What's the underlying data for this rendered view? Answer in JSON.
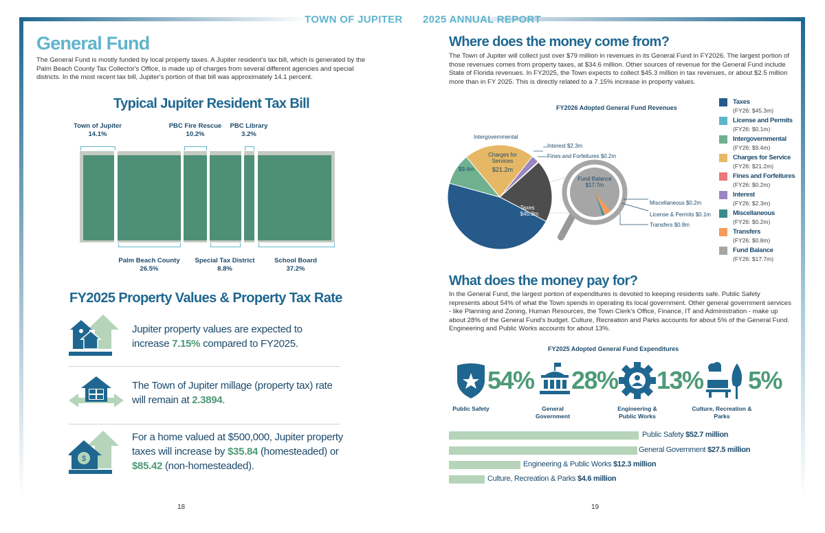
{
  "header": {
    "left": "TOWN OF JUPITER",
    "right": "2025 ANNUAL REPORT"
  },
  "left_page": {
    "title": "General Fund",
    "intro": "The General Fund is mostly funded by local property taxes. A Jupiter resident’s tax bill, which is generated by the Palm Beach County Tax Collector's Office, is made up of charges from several different agencies and special districts. In the most recent tax bill, Jupiter's portion of that bill was approximately 14.1 percent.",
    "tax_bill": {
      "title": "Typical Jupiter Resident Tax Bill",
      "segments": [
        {
          "name": "Town of Jupiter",
          "pct": "14.1%"
        },
        {
          "name": "Palm Beach County",
          "pct": "26.5%"
        },
        {
          "name": "PBC Fire Rescue",
          "pct": "10.2%"
        },
        {
          "name": "Special Tax District",
          "pct": "8.8%"
        },
        {
          "name": "PBC Library",
          "pct": "3.2%"
        },
        {
          "name": "School Board",
          "pct": "37.2%"
        }
      ],
      "colors": {
        "segment": "#4e8f78",
        "frame": "#c5cbc2",
        "bracket": "#5fb4cc"
      }
    },
    "property": {
      "title": "FY2025 Property Values & Property Tax Rate",
      "items": [
        {
          "icon": "houses-up-arrow-icon",
          "pre": "Jupiter property values are expected to increase ",
          "hl1": "7.15%",
          "mid": " compared to FY2025.",
          "hl2": "",
          "post": ""
        },
        {
          "icon": "calculator-house-icon",
          "pre": "The Town of Jupiter millage (property tax) rate will remain at ",
          "hl1": "2.3894",
          "mid": ".",
          "hl2": "",
          "post": ""
        },
        {
          "icon": "dollar-house-up-arrow-icon",
          "pre": "For a home valued at $500,000, Jupiter property taxes will increase by ",
          "hl1": "$35.84",
          "mid": " (homesteaded) or ",
          "hl2": "$85.42",
          "post": " (non-homesteaded)."
        }
      ]
    },
    "page_number": "18"
  },
  "right_page": {
    "revenue": {
      "title": "Where does the money come from?",
      "text": "The Town of Jupiter will collect just over $79 million in revenues in its General Fund in FY2026. The largest portion of those revenues comes from property taxes, at $34.6 million. Other sources of revenue for the General Fund include State of Florida revenues. In FY2025, the Town expects to collect $45.3 million in tax revenues, or about $2.5 million more than in FY 2025. This is directly related to a 7.15% increase in property values."
    },
    "chart_data": {
      "type": "pie",
      "title": "FY2026 Adopted General Fund Revenues",
      "legend_position": "right",
      "slices": [
        {
          "name": "Taxes",
          "value": 45.3,
          "legend_value": "(FY26: $45.3m)",
          "color": "#255a8a"
        },
        {
          "name": "License and Permits",
          "value": 0.1,
          "legend_value": "(FY26: $0.1m)",
          "color": "#5fb4cc"
        },
        {
          "name": "Intergovernmental",
          "value": 9.4,
          "legend_value": "(FY26: $9.4m)",
          "color": "#6fb08f"
        },
        {
          "name": "Charges for Service",
          "value": 21.2,
          "legend_value": "(FY26: $21.2m)",
          "color": "#e6b764"
        },
        {
          "name": "Fines and Forfeitures",
          "value": 0.2,
          "legend_value": "(FY26: $0.2m)",
          "color": "#e87878"
        },
        {
          "name": "Interest",
          "value": 2.3,
          "legend_value": "(FY26: $2.3m)",
          "color": "#9a86c0"
        },
        {
          "name": "Miscellaneous",
          "value": 0.2,
          "legend_value": "(FY26: $0.2m)",
          "color": "#3a8a8c"
        },
        {
          "name": "Transfers",
          "value": 0.8,
          "legend_value": "(FY26: $0.8m)",
          "color": "#f59a5a"
        },
        {
          "name": "Fund Balance",
          "value": 17.7,
          "legend_value": "(FY26: $17.7m)",
          "color": "#a6a6a6"
        }
      ],
      "other_group_color": "#4d4d4d",
      "labels": {
        "taxes": "Taxes",
        "taxes_val": "$45.3m",
        "charges": "Charges for Services",
        "charges_val": "$21.2m",
        "intergov": "Intergovernmental",
        "intergov_val": "$9.4m",
        "interest": "Interest $2.3m",
        "fines": "Fines and Forfeitures $0.2m",
        "fund": "Fund Balance",
        "fund_val": "$17.7m",
        "misc": "Miscellaneous $0.2m",
        "license": "License & Permits $0.1m",
        "transfers": "Transfers $0.8m"
      }
    },
    "expenditure": {
      "title": "What does the money pay for?",
      "text": "In the General Fund, the largest portion of expenditures is devoted to keeping residents safe. Public Safety represents about 54% of what the Town spends in operating its local government. Other general government services - like Planning and Zoning, Human Resources, the Town Clerk's Office, Finance, IT and Administration - make up about 28% of the General Fund's budget. Culture, Recreation and Parks accounts for about 5% of the General Fund. Engineering and Public Works accounts for about 13%.",
      "chart_title": "FY2025 Adopted General Fund Expenditures",
      "categories": [
        {
          "icon": "shield-star-icon",
          "pct": "54%",
          "label": "Public Safety",
          "bar_label": "Public Safety",
          "amount": "$52.7 million"
        },
        {
          "icon": "government-building-icon",
          "pct": "28%",
          "label": "General Government",
          "bar_label": "General Government",
          "amount": "$27.5 million"
        },
        {
          "icon": "gear-person-icon",
          "pct": "13%",
          "label": "Engineering & Public Works",
          "bar_label": "Engineering & Public Works",
          "amount": "$12.3 million"
        },
        {
          "icon": "park-bench-tree-icon",
          "pct": "5%",
          "label": "Culture, Recreation & Parks",
          "bar_label": "Culture, Recreation & Parks",
          "amount": "$4.6  million"
        }
      ]
    },
    "page_number": "19"
  }
}
